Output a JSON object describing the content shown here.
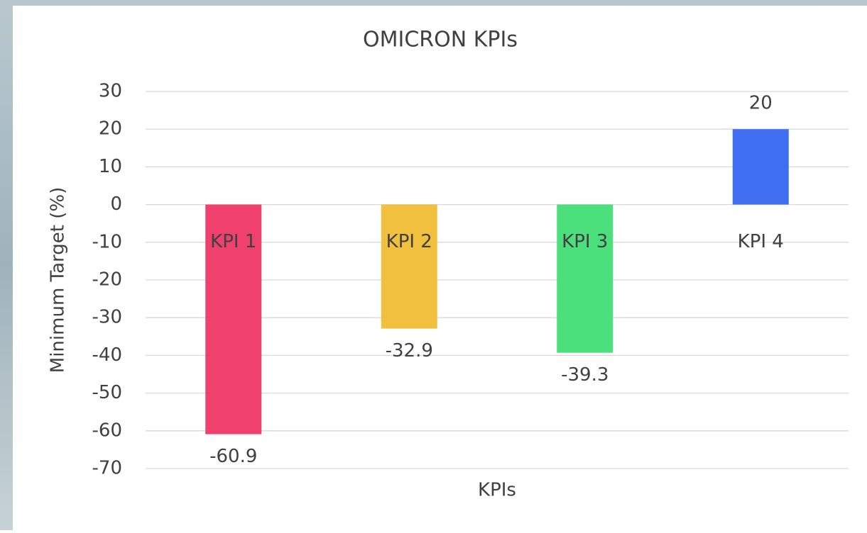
{
  "chart_data": {
    "type": "bar",
    "title": "OMICRON KPIs",
    "x_label": "KPIs",
    "y_label": "Minimum Target (%)",
    "categories": [
      "KPI 1",
      "KPI 2",
      "KPI 3",
      "KPI 4"
    ],
    "values": [
      -60.9,
      -32.9,
      -39.3,
      20
    ],
    "colors": [
      "#f0416e",
      "#f0c03e",
      "#4be07c",
      "#3f6ff0"
    ],
    "ylim": [
      -70,
      30
    ],
    "yticks": [
      -70,
      -60,
      -50,
      -40,
      -30,
      -20,
      -10,
      0,
      10,
      20,
      30
    ],
    "grid": true
  }
}
